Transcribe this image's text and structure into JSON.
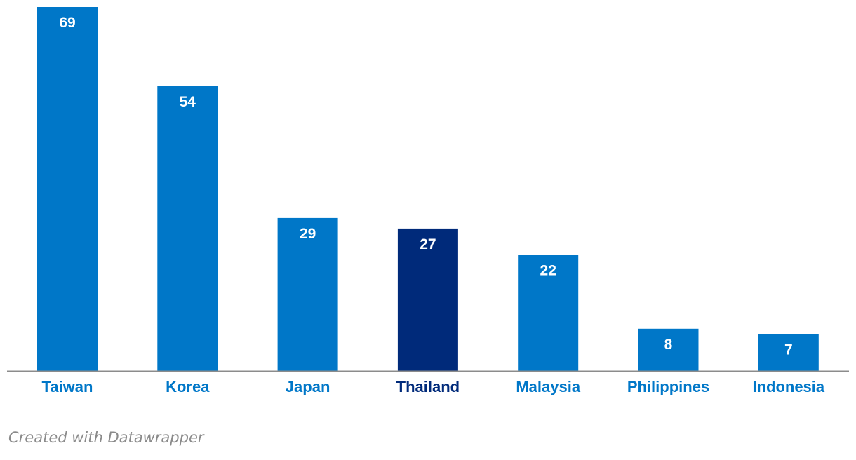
{
  "chart_data": {
    "type": "bar",
    "title": "",
    "xlabel": "",
    "ylabel": "",
    "categories": [
      "Taiwan",
      "Korea",
      "Japan",
      "Thailand",
      "Malaysia",
      "Philippines",
      "Indonesia"
    ],
    "values": [
      69,
      54,
      29,
      27,
      22,
      8,
      7
    ],
    "highlight": "Thailand",
    "ylim": [
      0,
      70
    ],
    "grid": false,
    "legend": "none",
    "colors": {
      "bar": "#0077c8",
      "highlight_bar": "#002a7a",
      "value_label": "#ffffff",
      "category_label": "#0077c8",
      "highlight_label": "#002a7a",
      "baseline": "#8c8c8c"
    }
  },
  "footer": {
    "credit": "Created with Datawrapper"
  }
}
